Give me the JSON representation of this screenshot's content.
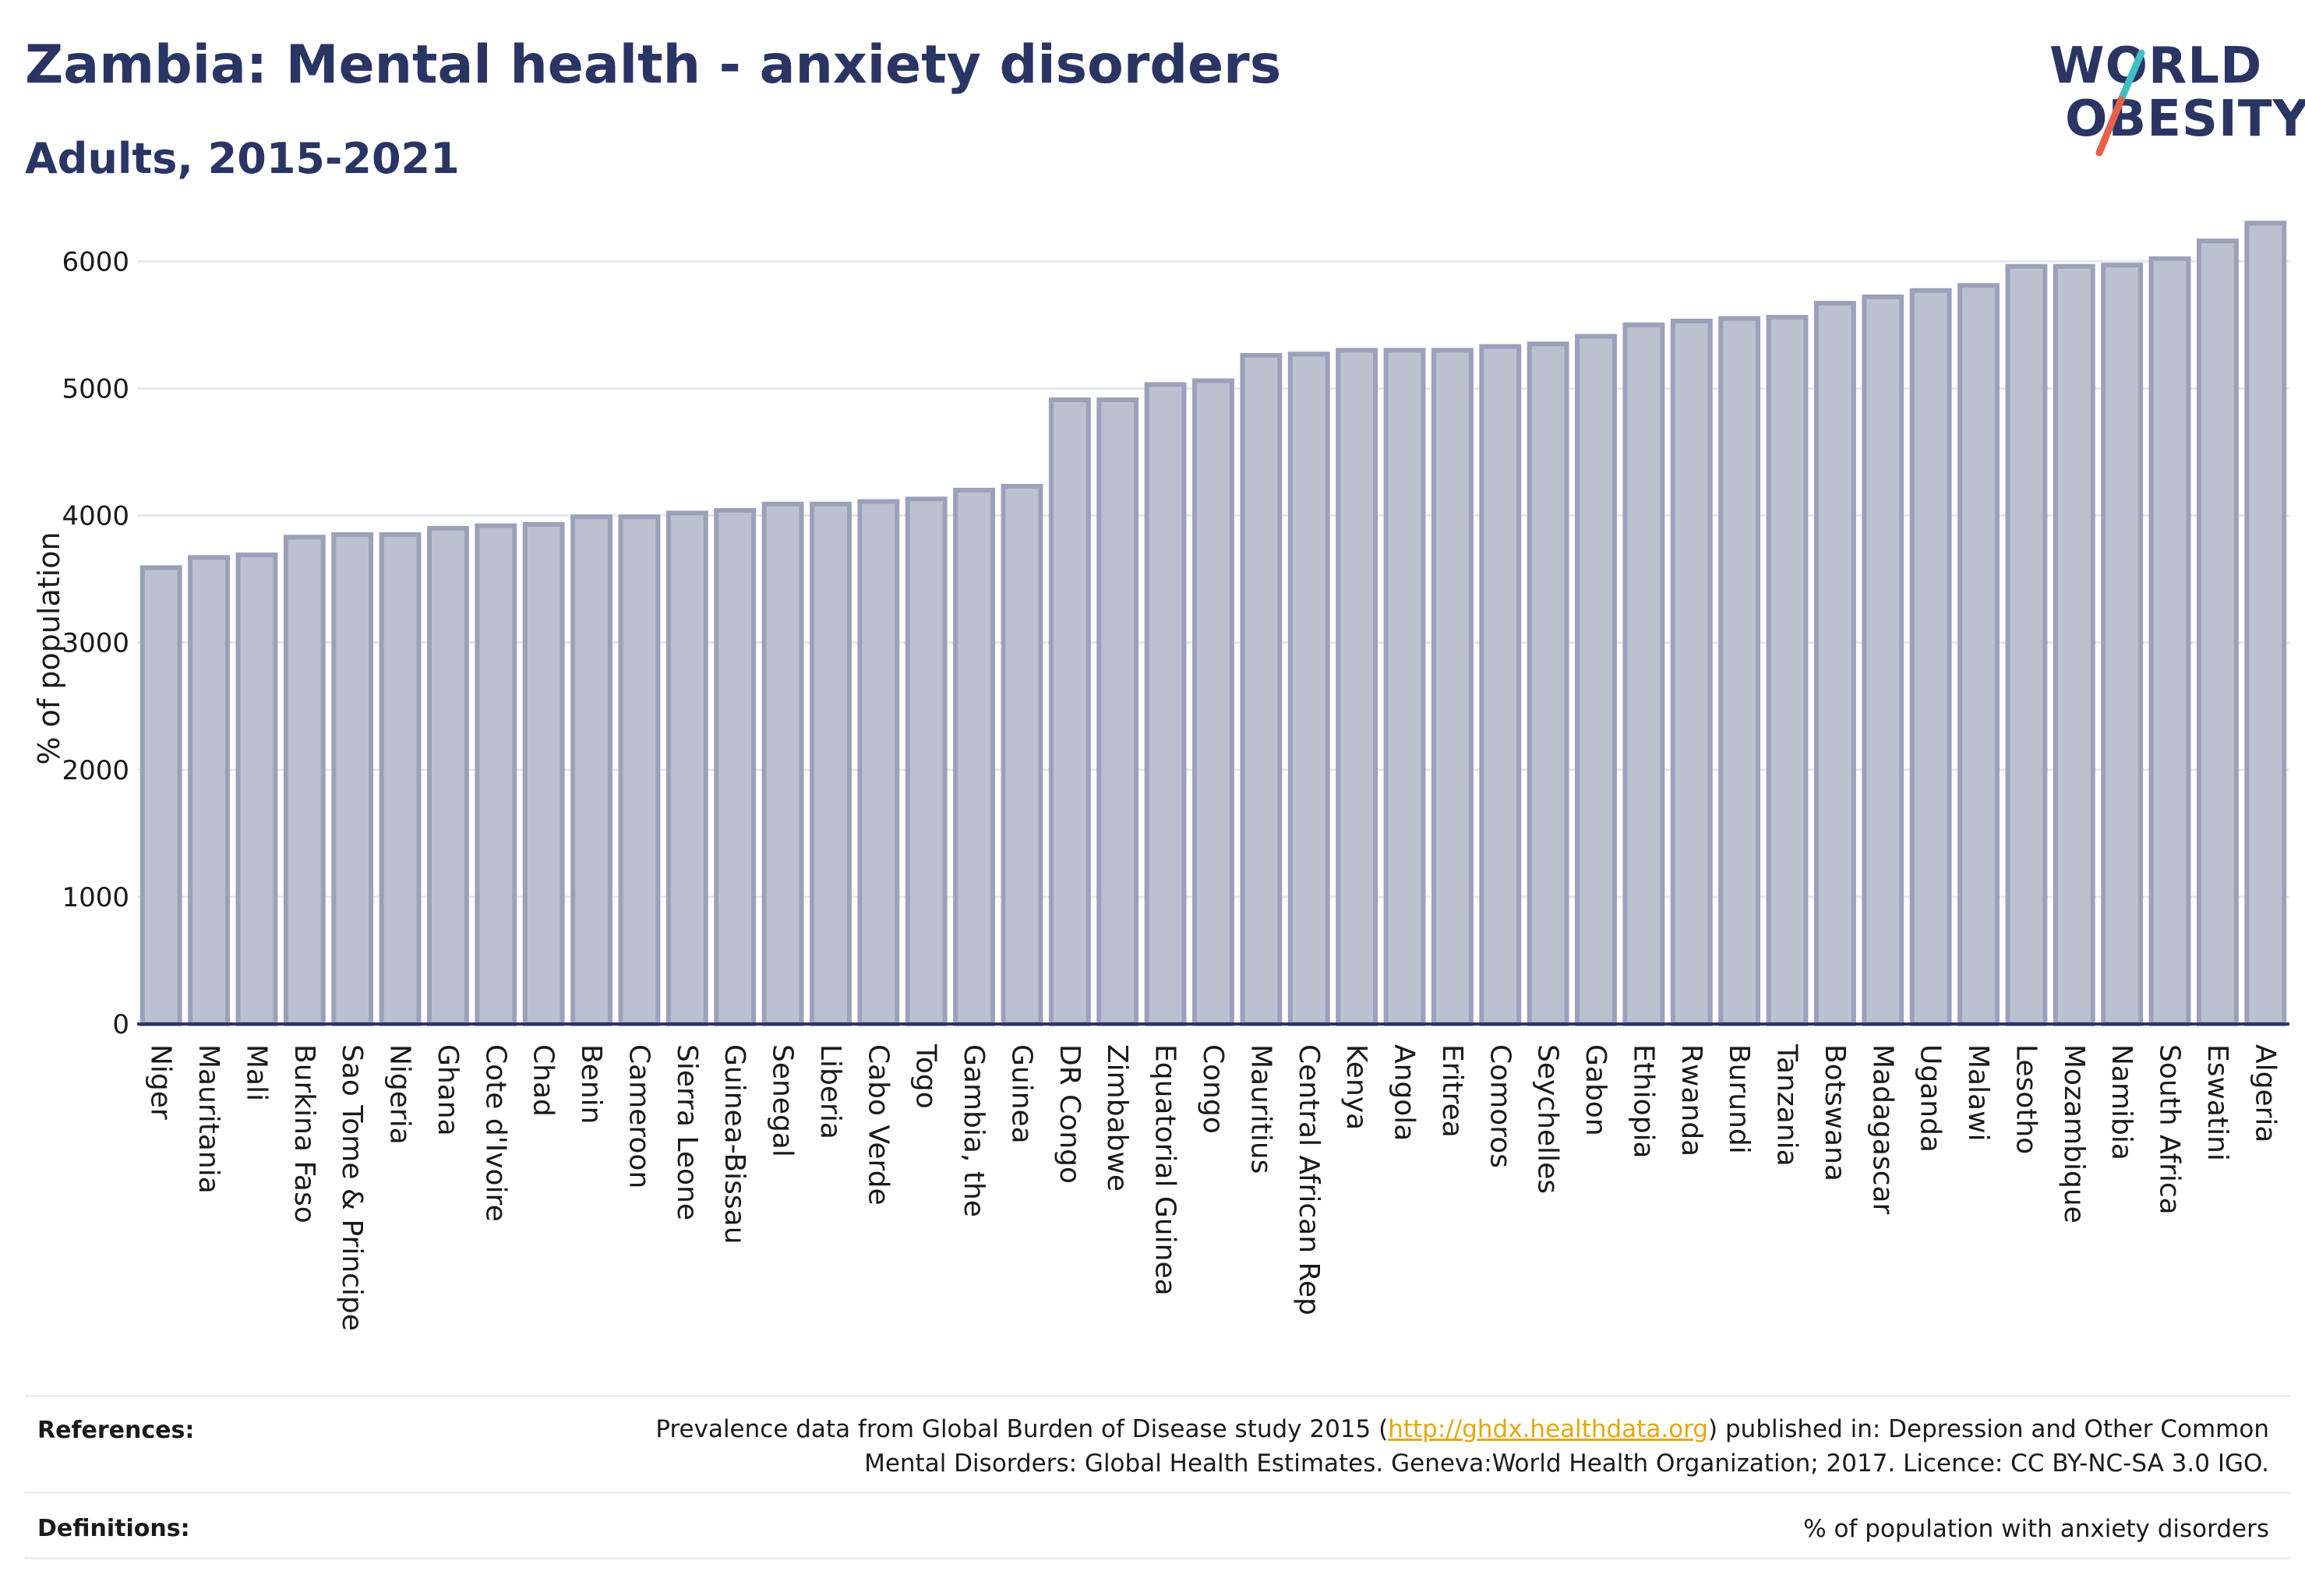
{
  "header": {
    "title": "Zambia: Mental health - anxiety disorders",
    "subtitle": "Adults, 2015-2021"
  },
  "logo": {
    "line1": "WORLD",
    "line2": "OBESITY",
    "accent_colors": [
      "#3fbfc2",
      "#e8604c"
    ]
  },
  "chart_data": {
    "type": "bar",
    "ylabel": "% of population",
    "ylim": [
      0,
      6400
    ],
    "yticks": [
      0,
      1000,
      2000,
      3000,
      4000,
      5000,
      6000
    ],
    "grid": true,
    "bar_color": "#bcc1d0",
    "bar_edge_color": "#9aa1b9",
    "categories": [
      "Niger",
      "Mauritania",
      "Mali",
      "Burkina Faso",
      "Sao Tome & Principe",
      "Nigeria",
      "Ghana",
      "Cote d'Ivoire",
      "Chad",
      "Benin",
      "Cameroon",
      "Sierra Leone",
      "Guinea-Bissau",
      "Senegal",
      "Liberia",
      "Cabo Verde",
      "Togo",
      "Gambia, the",
      "Guinea",
      "DR Congo",
      "Zimbabwe",
      "Equatorial Guinea",
      "Congo",
      "Mauritius",
      "Central African Rep",
      "Kenya",
      "Angola",
      "Eritrea",
      "Comoros",
      "Seychelles",
      "Gabon",
      "Ethiopia",
      "Rwanda",
      "Burundi",
      "Tanzania",
      "Botswana",
      "Madagascar",
      "Uganda",
      "Malawi",
      "Lesotho",
      "Mozambique",
      "Namibia",
      "South Africa",
      "Eswatini",
      "Algeria"
    ],
    "values": [
      3590,
      3670,
      3690,
      3830,
      3850,
      3850,
      3900,
      3920,
      3930,
      3990,
      3990,
      4020,
      4040,
      4090,
      4090,
      4110,
      4130,
      4200,
      4230,
      4910,
      4910,
      5030,
      5060,
      5260,
      5270,
      5300,
      5300,
      5300,
      5330,
      5350,
      5410,
      5500,
      5530,
      5550,
      5560,
      5670,
      5720,
      5770,
      5810,
      5960,
      5960,
      5970,
      6020,
      6160,
      6300
    ]
  },
  "references": {
    "label": "References:",
    "text_before_link": "Prevalence data from Global Burden of Disease study 2015 (",
    "link": "http://ghdx.healthdata.org",
    "text_after_link": ") published in: Depression and Other Common",
    "line2": "Mental Disorders: Global Health Estimates. Geneva:World Health Organization; 2017. Licence: CC BY-NC-SA 3.0 IGO."
  },
  "definitions": {
    "label": "Definitions:",
    "text": "% of population with anxiety disorders"
  }
}
